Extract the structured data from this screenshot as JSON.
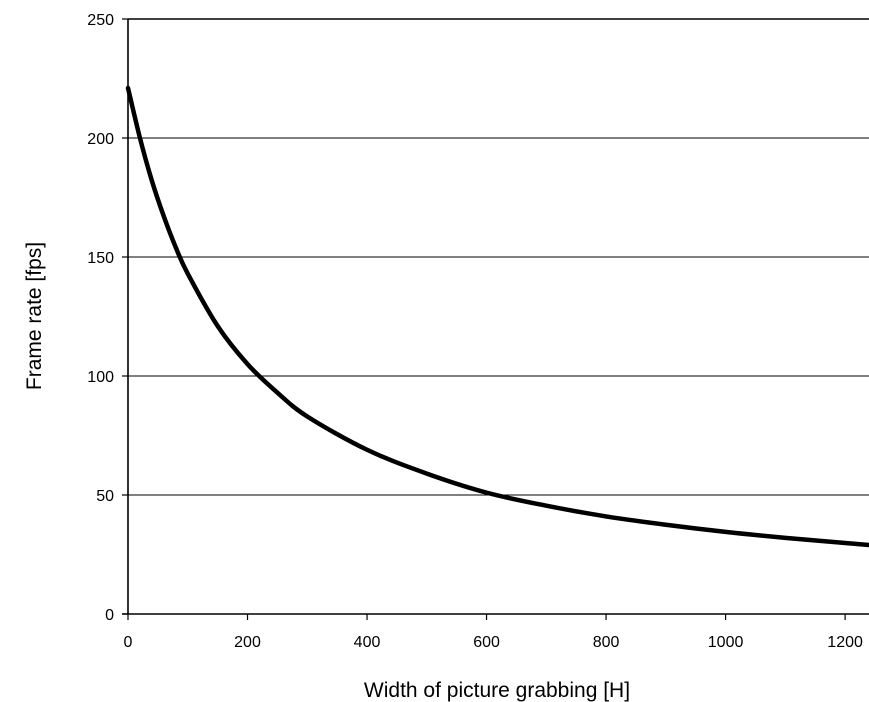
{
  "chart_data": {
    "type": "line",
    "title": "",
    "xlabel": "Width of picture grabbing [H]",
    "ylabel": "Frame rate [fps]",
    "xlim": [
      0,
      1240
    ],
    "ylim": [
      0,
      250
    ],
    "x_ticks": [
      0,
      200,
      400,
      600,
      800,
      1000,
      1200
    ],
    "y_ticks": [
      0,
      50,
      100,
      150,
      200,
      250
    ],
    "grid": "horizontal",
    "legend": "none",
    "series": [
      {
        "color": "#000000",
        "x": [
          0,
          20,
          40,
          60,
          80,
          100,
          150,
          200,
          250,
          300,
          400,
          500,
          600,
          700,
          800,
          900,
          1000,
          1100,
          1240
        ],
        "y": [
          221,
          200,
          182,
          167,
          154,
          143,
          121,
          105,
          93,
          83,
          69,
          59,
          51,
          45.5,
          41,
          37.5,
          34.5,
          32,
          29
        ]
      }
    ]
  }
}
